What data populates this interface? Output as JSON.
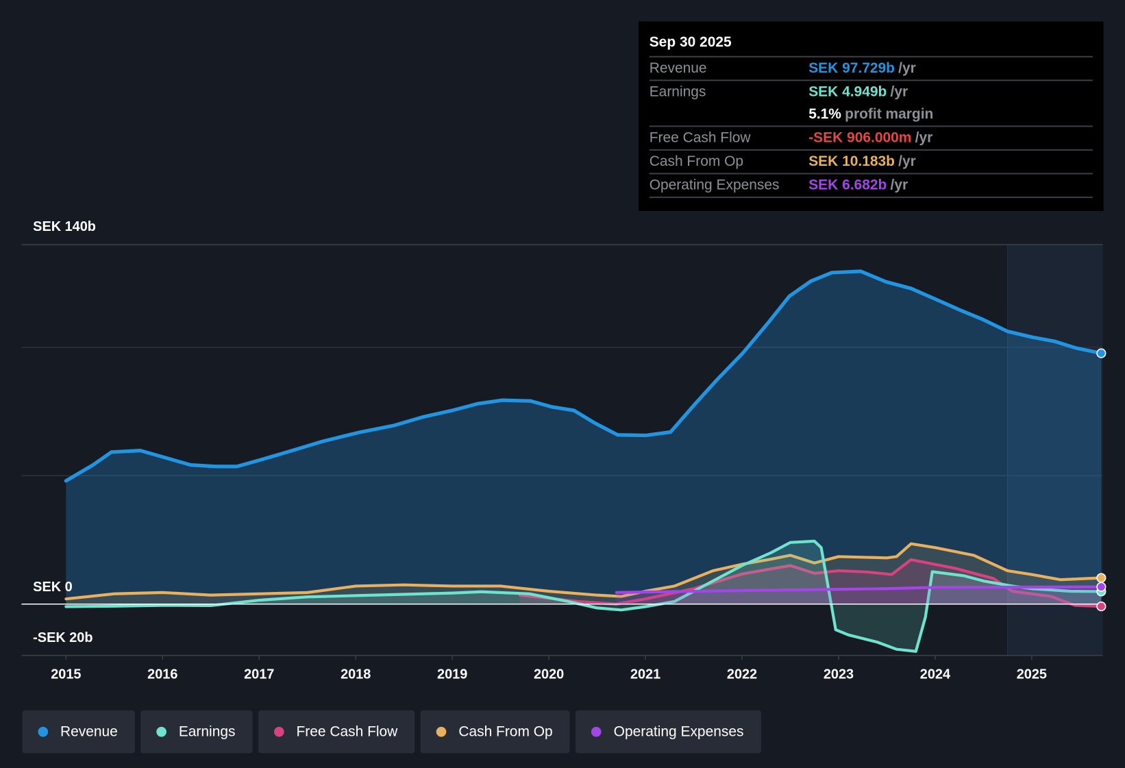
{
  "colors": {
    "revenue": "#2394df",
    "earnings": "#6fe3cf",
    "fcf": "#d6437f",
    "fcf_negative_text": "#e84545",
    "cfo": "#e8b05f",
    "opex": "#a346e8",
    "background": "#151a23"
  },
  "tooltip": {
    "date": "Sep 30 2025",
    "rows": [
      {
        "label": "Revenue",
        "value": "SEK 97.729b",
        "unit": "/yr"
      },
      {
        "label": "Earnings",
        "value": "SEK 4.949b",
        "unit": "/yr"
      },
      {
        "label": "",
        "value": "5.1%",
        "unit": "profit margin"
      },
      {
        "label": "Free Cash Flow",
        "value": "-SEK 906.000m",
        "unit": "/yr"
      },
      {
        "label": "Cash From Op",
        "value": "SEK 10.183b",
        "unit": "/yr"
      },
      {
        "label": "Operating Expenses",
        "value": "SEK 6.682b",
        "unit": "/yr"
      }
    ]
  },
  "chart_data": {
    "type": "area",
    "xlabel": "",
    "ylabel": "",
    "y_tick_labels": [
      "SEK 140b",
      "SEK 0",
      "-SEK 20b"
    ],
    "ylim": [
      -20,
      140
    ],
    "x_tick_labels": [
      "2015",
      "2016",
      "2017",
      "2018",
      "2019",
      "2020",
      "2021",
      "2022",
      "2023",
      "2024",
      "2025"
    ],
    "xlim": [
      2014.55,
      2025.75
    ],
    "grid_values": [
      140,
      100,
      50
    ],
    "past_data_shaded_from": 2024.75,
    "series": [
      {
        "name": "Revenue",
        "key": "revenue",
        "points": [
          [
            2015.0,
            48
          ],
          [
            2015.28,
            54.2
          ],
          [
            2015.47,
            59.2
          ],
          [
            2015.77,
            59.8
          ],
          [
            2016.03,
            57
          ],
          [
            2016.29,
            54.2
          ],
          [
            2016.55,
            53.6
          ],
          [
            2016.77,
            53.6
          ],
          [
            2016.99,
            55.9
          ],
          [
            2017.29,
            59.2
          ],
          [
            2017.66,
            63.4
          ],
          [
            2018.03,
            66.8
          ],
          [
            2018.4,
            69.6
          ],
          [
            2018.7,
            72.9
          ],
          [
            2019.0,
            75.4
          ],
          [
            2019.26,
            78
          ],
          [
            2019.52,
            79.4
          ],
          [
            2019.81,
            79.1
          ],
          [
            2020.03,
            76.8
          ],
          [
            2020.26,
            75.4
          ],
          [
            2020.48,
            70.4
          ],
          [
            2020.71,
            65.9
          ],
          [
            2021.0,
            65.7
          ],
          [
            2021.26,
            67
          ],
          [
            2021.52,
            78.2
          ],
          [
            2021.75,
            87.7
          ],
          [
            2022.01,
            97.8
          ],
          [
            2022.27,
            109.5
          ],
          [
            2022.49,
            119.9
          ],
          [
            2022.71,
            125.7
          ],
          [
            2022.93,
            129.1
          ],
          [
            2023.23,
            129.6
          ],
          [
            2023.49,
            125.5
          ],
          [
            2023.75,
            122.9
          ],
          [
            2023.97,
            119.3
          ],
          [
            2024.27,
            114.3
          ],
          [
            2024.49,
            110.9
          ],
          [
            2024.75,
            106.2
          ],
          [
            2025.01,
            103.9
          ],
          [
            2025.24,
            102.3
          ],
          [
            2025.46,
            99.7
          ],
          [
            2025.72,
            97.7
          ]
        ]
      },
      {
        "name": "Earnings",
        "key": "earnings",
        "points": [
          [
            2015.0,
            -1
          ],
          [
            2015.5,
            -0.8
          ],
          [
            2016.0,
            -0.5
          ],
          [
            2016.5,
            -0.6
          ],
          [
            2017.0,
            1.5
          ],
          [
            2017.5,
            2.8
          ],
          [
            2018.0,
            3.3
          ],
          [
            2018.5,
            3.8
          ],
          [
            2019.0,
            4.3
          ],
          [
            2019.3,
            4.8
          ],
          [
            2019.8,
            4
          ],
          [
            2020.2,
            1
          ],
          [
            2020.5,
            -1.5
          ],
          [
            2020.75,
            -2.3
          ],
          [
            2021.0,
            -1
          ],
          [
            2021.3,
            1
          ],
          [
            2021.5,
            5
          ],
          [
            2021.75,
            10
          ],
          [
            2022.0,
            15
          ],
          [
            2022.3,
            20
          ],
          [
            2022.5,
            24
          ],
          [
            2022.75,
            24.5
          ],
          [
            2022.82,
            22
          ],
          [
            2022.97,
            -10
          ],
          [
            2023.1,
            -12
          ],
          [
            2023.4,
            -14.8
          ],
          [
            2023.6,
            -17.6
          ],
          [
            2023.8,
            -18.4
          ],
          [
            2023.9,
            -5
          ],
          [
            2023.97,
            12.6
          ],
          [
            2024.3,
            11
          ],
          [
            2024.5,
            9
          ],
          [
            2024.8,
            7
          ],
          [
            2025.0,
            6
          ],
          [
            2025.4,
            5
          ],
          [
            2025.72,
            4.9
          ]
        ]
      },
      {
        "name": "Free Cash Flow",
        "key": "fcf",
        "points": [
          [
            2019.7,
            3.5
          ],
          [
            2020.3,
            1
          ],
          [
            2020.7,
            0
          ],
          [
            2021.0,
            2
          ],
          [
            2021.5,
            6
          ],
          [
            2022.0,
            11.7
          ],
          [
            2022.5,
            15
          ],
          [
            2022.75,
            12
          ],
          [
            2023.0,
            13
          ],
          [
            2023.3,
            12.5
          ],
          [
            2023.55,
            11.5
          ],
          [
            2023.75,
            17.3
          ],
          [
            2024.2,
            14
          ],
          [
            2024.6,
            10
          ],
          [
            2024.8,
            5
          ],
          [
            2025.2,
            3
          ],
          [
            2025.45,
            -0.5
          ],
          [
            2025.72,
            -0.9
          ]
        ]
      },
      {
        "name": "Cash From Op",
        "key": "cfo",
        "points": [
          [
            2015.0,
            2
          ],
          [
            2015.5,
            4
          ],
          [
            2016.0,
            4.5
          ],
          [
            2016.5,
            3.5
          ],
          [
            2017.0,
            4
          ],
          [
            2017.5,
            4.5
          ],
          [
            2018.0,
            7
          ],
          [
            2018.5,
            7.5
          ],
          [
            2019.0,
            7
          ],
          [
            2019.5,
            7
          ],
          [
            2020.0,
            5
          ],
          [
            2020.5,
            3.5
          ],
          [
            2020.75,
            3
          ],
          [
            2021.0,
            5
          ],
          [
            2021.3,
            7
          ],
          [
            2021.7,
            13
          ],
          [
            2022.0,
            15.5
          ],
          [
            2022.3,
            17.5
          ],
          [
            2022.5,
            19
          ],
          [
            2022.75,
            16
          ],
          [
            2023.0,
            18.5
          ],
          [
            2023.5,
            18
          ],
          [
            2023.6,
            18.5
          ],
          [
            2023.75,
            23.5
          ],
          [
            2024.0,
            22
          ],
          [
            2024.4,
            19
          ],
          [
            2024.75,
            13
          ],
          [
            2025.0,
            11.5
          ],
          [
            2025.3,
            9.5
          ],
          [
            2025.72,
            10.2
          ]
        ]
      },
      {
        "name": "Operating Expenses",
        "key": "opex",
        "points": [
          [
            2020.7,
            4.5
          ],
          [
            2021.5,
            5
          ],
          [
            2022.5,
            5.5
          ],
          [
            2023.5,
            6
          ],
          [
            2024.0,
            6.5
          ],
          [
            2025.72,
            6.7
          ]
        ]
      }
    ]
  },
  "legend": [
    {
      "label": "Revenue",
      "key": "revenue"
    },
    {
      "label": "Earnings",
      "key": "earnings"
    },
    {
      "label": "Free Cash Flow",
      "key": "fcf"
    },
    {
      "label": "Cash From Op",
      "key": "cfo"
    },
    {
      "label": "Operating Expenses",
      "key": "opex"
    }
  ]
}
